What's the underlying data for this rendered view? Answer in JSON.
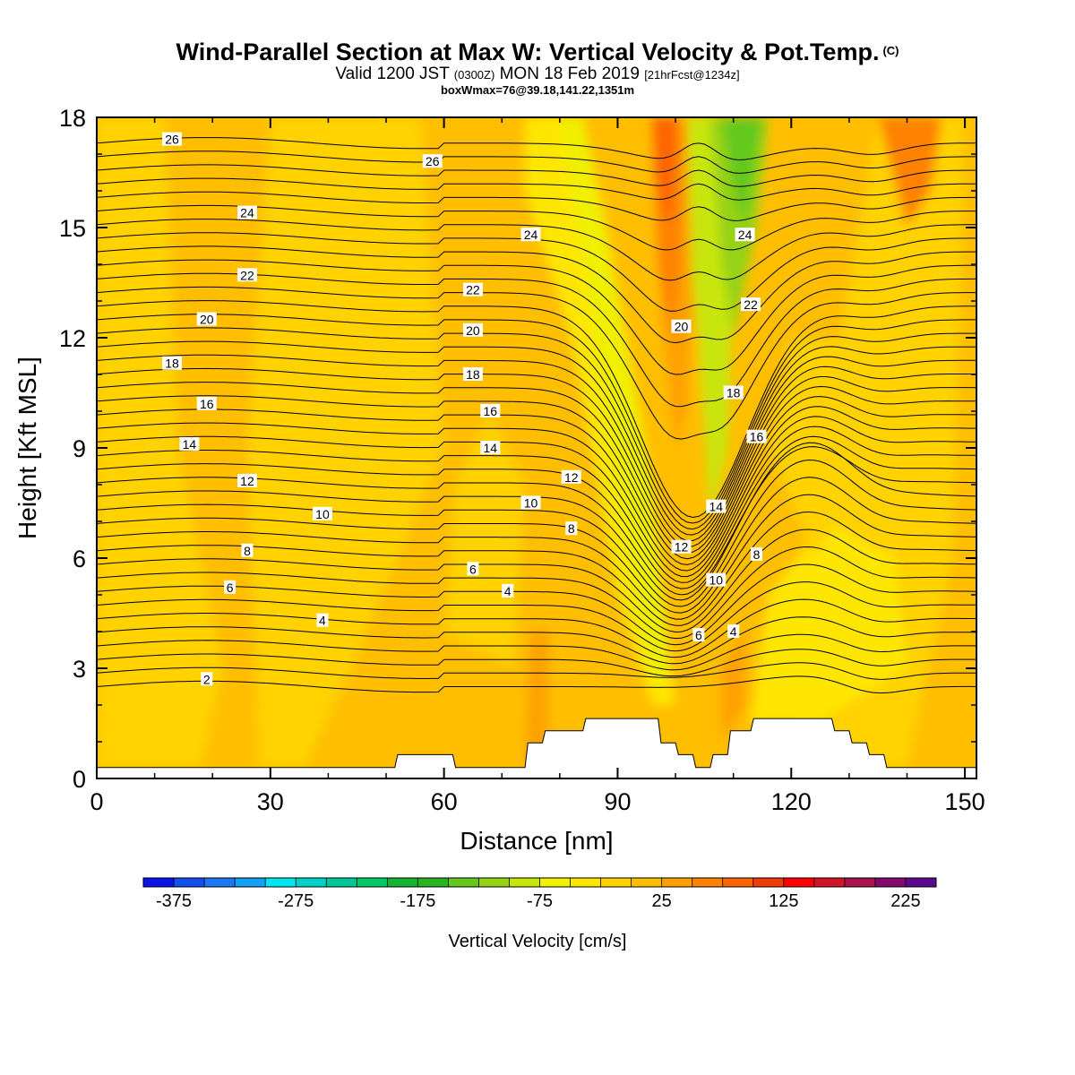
{
  "header": {
    "title_main": "Wind-Parallel Section at Max W: Vertical Velocity & Pot.Temp.",
    "title_copyright": "(C)",
    "subtitle_a": "Valid 1200 JST",
    "subtitle_b": "(0300Z)",
    "subtitle_c": "MON 18 Feb 2019",
    "subtitle_d": "[21hrFcst@1234z]",
    "box_info": "boxWmax=76@39.18,141.22,1351m"
  },
  "chart_data": {
    "type": "heatmap",
    "title": "Wind-Parallel Section at Max W: Vertical Velocity & Pot.Temp.",
    "xlabel": "Distance [nm]",
    "ylabel": "Height [Kft MSL]",
    "xlim": [
      0,
      152
    ],
    "ylim": [
      0,
      18
    ],
    "x_ticks": [
      0,
      30,
      60,
      90,
      120,
      150
    ],
    "y_ticks": [
      0,
      3,
      6,
      9,
      12,
      15,
      18
    ],
    "grid": false,
    "colorbar": {
      "title": "Vertical Velocity [cm/s]",
      "orientation": "horizontal",
      "tick_values": [
        -375,
        -275,
        -175,
        -75,
        25,
        125,
        225
      ],
      "start": -400,
      "step": 25,
      "colors": [
        "#0a14e6",
        "#1450f0",
        "#1e78f5",
        "#14a0f5",
        "#00e6f0",
        "#00d2c8",
        "#00c896",
        "#00c864",
        "#14b432",
        "#28b41e",
        "#64c81e",
        "#96d214",
        "#c8e60a",
        "#f0f000",
        "#ffe600",
        "#ffd200",
        "#ffbe00",
        "#ffa000",
        "#ff8200",
        "#ff6400",
        "#f03c0a",
        "#ff0000",
        "#d21428",
        "#aa1450",
        "#820a6e",
        "#5a0a8c"
      ]
    },
    "contour_labels_potential_temperature": [
      {
        "value": 26,
        "x": 13,
        "y": 17.4
      },
      {
        "value": 26,
        "x": 58,
        "y": 16.8
      },
      {
        "value": 24,
        "x": 26,
        "y": 15.4
      },
      {
        "value": 24,
        "x": 75,
        "y": 14.8
      },
      {
        "value": 24,
        "x": 112,
        "y": 14.8
      },
      {
        "value": 22,
        "x": 26,
        "y": 13.7
      },
      {
        "value": 22,
        "x": 65,
        "y": 13.3
      },
      {
        "value": 22,
        "x": 113,
        "y": 12.9
      },
      {
        "value": 20,
        "x": 19,
        "y": 12.5
      },
      {
        "value": 20,
        "x": 65,
        "y": 12.2
      },
      {
        "value": 20,
        "x": 101,
        "y": 12.3
      },
      {
        "value": 18,
        "x": 13,
        "y": 11.3
      },
      {
        "value": 18,
        "x": 65,
        "y": 11.0
      },
      {
        "value": 18,
        "x": 110,
        "y": 10.5
      },
      {
        "value": 16,
        "x": 19,
        "y": 10.2
      },
      {
        "value": 16,
        "x": 68,
        "y": 10.0
      },
      {
        "value": 16,
        "x": 114,
        "y": 9.3
      },
      {
        "value": 14,
        "x": 16,
        "y": 9.1
      },
      {
        "value": 14,
        "x": 68,
        "y": 9.0
      },
      {
        "value": 14,
        "x": 107,
        "y": 7.4
      },
      {
        "value": 12,
        "x": 26,
        "y": 8.1
      },
      {
        "value": 12,
        "x": 82,
        "y": 8.2
      },
      {
        "value": 12,
        "x": 101,
        "y": 6.3
      },
      {
        "value": 10,
        "x": 39,
        "y": 7.2
      },
      {
        "value": 10,
        "x": 75,
        "y": 7.5
      },
      {
        "value": 10,
        "x": 107,
        "y": 5.4
      },
      {
        "value": 8,
        "x": 26,
        "y": 6.2
      },
      {
        "value": 8,
        "x": 82,
        "y": 6.8
      },
      {
        "value": 8,
        "x": 114,
        "y": 6.1
      },
      {
        "value": 6,
        "x": 23,
        "y": 5.2
      },
      {
        "value": 6,
        "x": 65,
        "y": 5.7
      },
      {
        "value": 6,
        "x": 104,
        "y": 3.9
      },
      {
        "value": 4,
        "x": 39,
        "y": 4.3
      },
      {
        "value": 4,
        "x": 71,
        "y": 5.1
      },
      {
        "value": 4,
        "x": 110,
        "y": 4.0
      },
      {
        "value": 2,
        "x": 19,
        "y": 2.7
      }
    ],
    "terrain_profile_kft": {
      "x": [
        0,
        51.5,
        52,
        61.5,
        62,
        74,
        74.5,
        77,
        77.5,
        80,
        80.5,
        84,
        84.5,
        90,
        94,
        97,
        97.5,
        100,
        100.5,
        103,
        103.5,
        106,
        106.5,
        109,
        109.5,
        113,
        113.5,
        120,
        125,
        127,
        127.5,
        130,
        130.5,
        133,
        133.5,
        136,
        136.5,
        152
      ],
      "y": [
        0.3,
        0.3,
        0.65,
        0.65,
        0.3,
        0.3,
        0.97,
        0.97,
        1.3,
        1.3,
        1.3,
        1.3,
        1.63,
        1.63,
        1.63,
        1.63,
        0.97,
        0.97,
        0.65,
        0.65,
        0.3,
        0.3,
        0.65,
        0.65,
        1.3,
        1.3,
        1.63,
        1.63,
        1.63,
        1.63,
        1.3,
        1.3,
        0.97,
        0.97,
        0.65,
        0.65,
        0.3,
        0.3
      ]
    },
    "colors": {
      "background_field": "#ffbe00",
      "contour_line": "#000000"
    }
  }
}
